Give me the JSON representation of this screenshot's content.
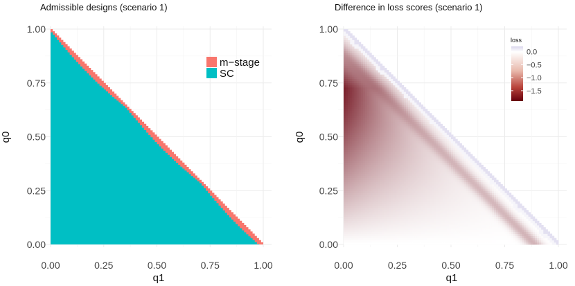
{
  "chart_data": [
    {
      "type": "heatmap",
      "title": "Admissible designs (scenario 1)",
      "xlabel": "q1",
      "ylabel": "q0",
      "xlim": [
        0,
        1
      ],
      "ylim": [
        0,
        1
      ],
      "x_ticks": [
        "0.00",
        "0.25",
        "0.50",
        "0.75",
        "1.00"
      ],
      "y_ticks": [
        "0.00",
        "0.25",
        "0.50",
        "0.75",
        "1.00"
      ],
      "grid": true,
      "legend_position": "top-right",
      "fill_legend": [
        {
          "name": "m−stage",
          "color": "#F8766D"
        },
        {
          "name": "SC",
          "color": "#00BFC4"
        }
      ],
      "region": "q0 + q1 <= 1",
      "mstage_band_width": 0.025
    },
    {
      "type": "heatmap",
      "title": "Difference in loss scores (scenario 1)",
      "xlabel": "q1",
      "ylabel": "q0",
      "xlim": [
        0,
        1
      ],
      "ylim": [
        0,
        1
      ],
      "x_ticks": [
        "0.00",
        "0.25",
        "0.50",
        "0.75",
        "1.00"
      ],
      "y_ticks": [
        "0.00",
        "0.25",
        "0.50",
        "0.75",
        "1.00"
      ],
      "grid": true,
      "region": "q0 + q1 <= 1",
      "colorbar": {
        "title": "loss",
        "min": -1.9,
        "max": 0.2,
        "ticks": [
          0.0,
          -0.5,
          -1.0,
          -1.5
        ],
        "tick_labels": [
          "0.0",
          "−0.5",
          "−1.0",
          "−1.5"
        ],
        "low_color": "#67000D",
        "mid_color": "#FFFFFF",
        "high_color": "#DAD6EC",
        "legend_position": "top-right"
      }
    }
  ]
}
